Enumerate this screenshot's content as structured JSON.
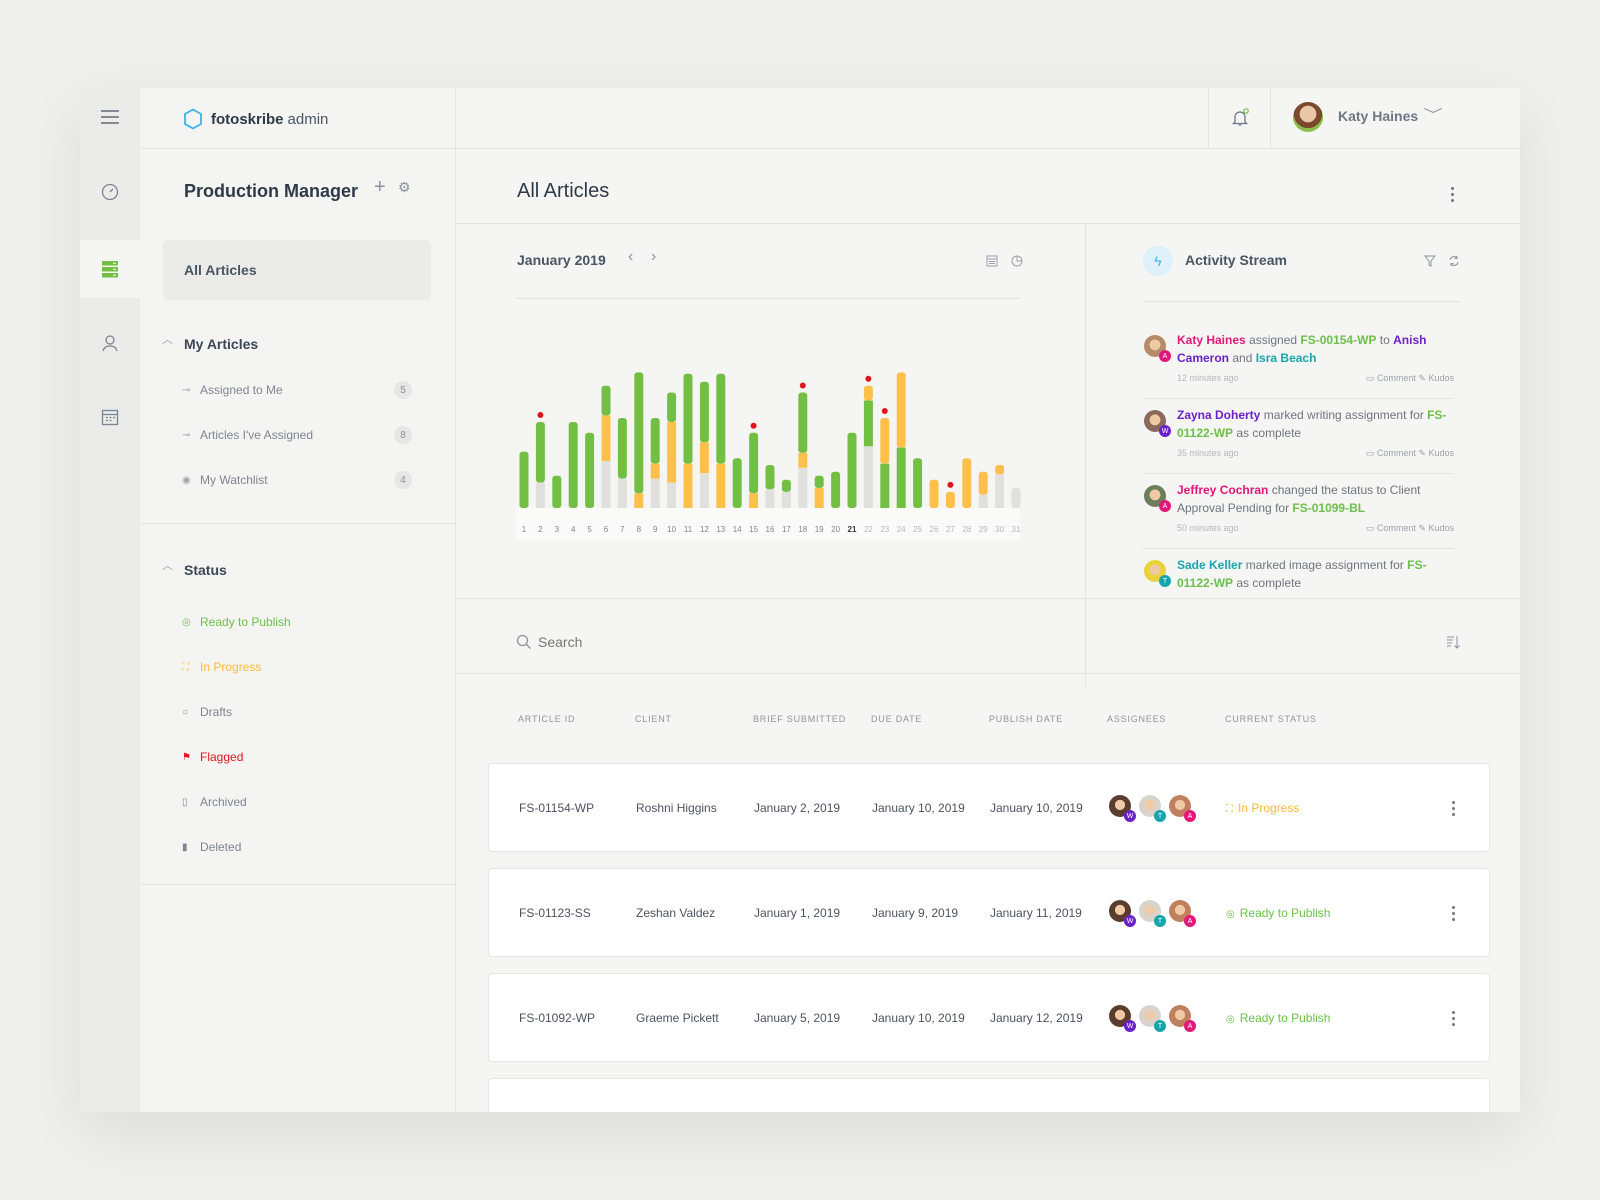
{
  "app": {
    "brand": "fotoskribe",
    "brand_suffix": "admin",
    "user_name": "Katy Haines"
  },
  "colors": {
    "green": "#72bf44",
    "orange": "#fdc04b",
    "grey": "#e0e0dc",
    "red": "#e0151c",
    "accent": "#35b6ee"
  },
  "left_panel": {
    "title": "Production Manager",
    "all_articles": "All Articles",
    "my_articles": {
      "heading": "My Articles",
      "items": [
        {
          "label": "Assigned to Me",
          "count": "5",
          "icon": "key-icon"
        },
        {
          "label": "Articles I've Assigned",
          "count": "8",
          "icon": "key-icon"
        },
        {
          "label": "My Watchlist",
          "count": "4",
          "icon": "eye-icon"
        }
      ]
    },
    "status": {
      "heading": "Status",
      "items": [
        {
          "label": "Ready to Publish",
          "icon": "check-circle-icon",
          "color": "#6cc04a"
        },
        {
          "label": "In Progress",
          "icon": "progress-icon",
          "color": "#fdb938"
        },
        {
          "label": "Drafts",
          "icon": "circle-icon",
          "color": "#7d8692"
        },
        {
          "label": "Flagged",
          "icon": "flag-icon",
          "color": "#e0151c"
        },
        {
          "label": "Archived",
          "icon": "archive-icon",
          "color": "#7d8692"
        },
        {
          "label": "Deleted",
          "icon": "trash-icon",
          "color": "#7d8692"
        }
      ]
    }
  },
  "main": {
    "title": "All Articles"
  },
  "calendar": {
    "month": "January 2019"
  },
  "chart_data": {
    "type": "bar",
    "stacked": true,
    "categories": [
      "1",
      "2",
      "3",
      "4",
      "5",
      "6",
      "7",
      "8",
      "9",
      "10",
      "11",
      "12",
      "13",
      "14",
      "15",
      "16",
      "17",
      "18",
      "19",
      "20",
      "21",
      "22",
      "23",
      "24",
      "25",
      "26",
      "27",
      "28",
      "29",
      "30",
      "31"
    ],
    "highlighted_category": "21",
    "bars": [
      [
        [
          "green",
          42
        ]
      ],
      [
        [
          "grey",
          19
        ],
        [
          "green",
          45
        ]
      ],
      [
        [
          "green",
          24
        ]
      ],
      [
        [
          "green",
          64
        ]
      ],
      [
        [
          "green",
          56
        ]
      ],
      [
        [
          "grey",
          35
        ],
        [
          "orange",
          34
        ],
        [
          "green",
          22
        ]
      ],
      [
        [
          "grey",
          22
        ],
        [
          "green",
          45
        ]
      ],
      [
        [
          "orange",
          11
        ],
        [
          "green",
          90
        ]
      ],
      [
        [
          "grey",
          22
        ],
        [
          "orange",
          11
        ],
        [
          "green",
          34
        ]
      ],
      [
        [
          "grey",
          19
        ],
        [
          "orange",
          45
        ],
        [
          "green",
          22
        ]
      ],
      [
        [
          "orange",
          33
        ],
        [
          "green",
          67
        ]
      ],
      [
        [
          "grey",
          26
        ],
        [
          "orange",
          23
        ],
        [
          "green",
          45
        ]
      ],
      [
        [
          "orange",
          33
        ],
        [
          "green",
          67
        ]
      ],
      [
        [
          "green",
          37
        ]
      ],
      [
        [
          "orange",
          11
        ],
        [
          "green",
          45
        ]
      ],
      [
        [
          "grey",
          14
        ],
        [
          "green",
          18
        ]
      ],
      [
        [
          "grey",
          12
        ],
        [
          "green",
          9
        ]
      ],
      [
        [
          "grey",
          30
        ],
        [
          "orange",
          11
        ],
        [
          "green",
          45
        ]
      ],
      [
        [
          "orange",
          15
        ],
        [
          "green",
          9
        ]
      ],
      [
        [
          "green",
          27
        ]
      ],
      [
        [
          "green",
          56
        ]
      ],
      [
        [
          "grey",
          46
        ],
        [
          "green",
          34
        ],
        [
          "orange",
          11
        ]
      ],
      [
        [
          "green",
          33
        ],
        [
          "orange",
          34
        ]
      ],
      [
        [
          "green",
          45
        ],
        [
          "orange",
          56
        ]
      ],
      [
        [
          "green",
          37
        ]
      ],
      [
        [
          "orange",
          21
        ]
      ],
      [
        [
          "orange",
          12
        ]
      ],
      [
        [
          "orange",
          37
        ]
      ],
      [
        [
          "grey",
          10
        ],
        [
          "orange",
          17
        ]
      ],
      [
        [
          "grey",
          25
        ],
        [
          "orange",
          7
        ]
      ],
      [
        [
          "grey",
          15
        ]
      ]
    ],
    "flagged_days": [
      "2",
      "15",
      "18",
      "22",
      "23",
      "27"
    ],
    "ylim": [
      0,
      100
    ],
    "grid": false
  },
  "activity": {
    "title": "Activity Stream",
    "comment_label": "Comment",
    "kudos_label": "Kudos",
    "items": [
      {
        "badge": "A",
        "badge_color": "#e3177a",
        "face": "#b58c6a",
        "time": "12 minutes ago",
        "segments": [
          {
            "t": "Katy Haines",
            "k": "person-pink"
          },
          {
            "t": " assigned ",
            "k": "plain"
          },
          {
            "t": "FS-00154-WP",
            "k": "link"
          },
          {
            "t": " to ",
            "k": "plain"
          },
          {
            "t": "Anish Cameron",
            "k": "person-purple"
          },
          {
            "t": " and ",
            "k": "plain"
          },
          {
            "t": "Isra Beach",
            "k": "person-teal"
          }
        ]
      },
      {
        "badge": "W",
        "badge_color": "#6b21c8",
        "face": "#8a6a5c",
        "time": "35 minutes ago",
        "segments": [
          {
            "t": "Zayna Doherty",
            "k": "person-purple"
          },
          {
            "t": " marked writing assignment for ",
            "k": "plain"
          },
          {
            "t": "FS-01122-WP",
            "k": "link"
          },
          {
            "t": " as complete",
            "k": "plain"
          }
        ]
      },
      {
        "badge": "A",
        "badge_color": "#e3177a",
        "face": "#6a7f5a",
        "time": "50 minutes ago",
        "segments": [
          {
            "t": "Jeffrey Cochran",
            "k": "person-pink"
          },
          {
            "t": " changed the status to Client Approval Pending for ",
            "k": "plain"
          },
          {
            "t": "FS-01099-BL",
            "k": "link"
          }
        ]
      },
      {
        "badge": "T",
        "badge_color": "#17a5ad",
        "face": "#e8d43a",
        "time": "",
        "segments": [
          {
            "t": "Sade Keller",
            "k": "person-teal"
          },
          {
            "t": " marked image assignment for ",
            "k": "plain"
          },
          {
            "t": "FS-01122-WP",
            "k": "link"
          },
          {
            "t": " as complete",
            "k": "plain"
          }
        ]
      }
    ]
  },
  "search": {
    "placeholder": "Search"
  },
  "table": {
    "columns": [
      "ARTICLE ID",
      "CLIENT",
      "BRIEF SUBMITTED",
      "DUE DATE",
      "PUBLISH DATE",
      "ASSIGNEES",
      "CURRENT STATUS"
    ],
    "rows": [
      {
        "id": "FS-01154-WP",
        "client": "Roshni Higgins",
        "brief": "January 2, 2019",
        "due": "January 10, 2019",
        "publish": "January 10, 2019",
        "assignees": [
          "W",
          "T",
          "A"
        ],
        "status": "In Progress",
        "status_color": "#fdb938",
        "status_icon": "progress-icon"
      },
      {
        "id": "FS-01123-SS",
        "client": "Zeshan Valdez",
        "brief": "January 1, 2019",
        "due": "January 9, 2019",
        "publish": "January 11, 2019",
        "assignees": [
          "W",
          "T",
          "A"
        ],
        "status": "Ready to Publish",
        "status_color": "#6cc04a",
        "status_icon": "check-circle-icon"
      },
      {
        "id": "FS-01092-WP",
        "client": "Graeme Pickett",
        "brief": "January 5, 2019",
        "due": "January 10, 2019",
        "publish": "January 12, 2019",
        "assignees": [
          "W",
          "T",
          "A"
        ],
        "status": "Ready to Publish",
        "status_color": "#6cc04a",
        "status_icon": "check-circle-icon"
      }
    ]
  }
}
